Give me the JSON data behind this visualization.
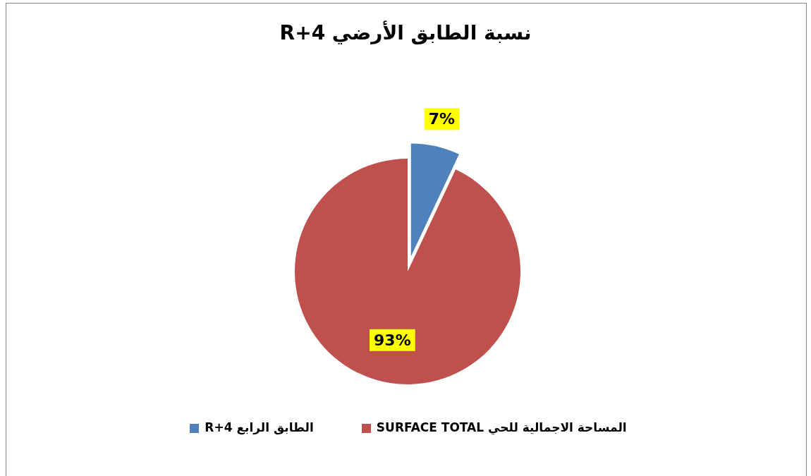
{
  "chart_data": {
    "type": "pie",
    "title": "نسبة الطابق الأرضي  R+4",
    "categories": [
      "الطابق الرابع  R+4",
      "المساحة الاجمالية للحي   SURFACE TOTAL"
    ],
    "values": [
      7,
      93
    ],
    "colors": [
      "#4f81bd",
      "#c0504d"
    ],
    "value_labels": [
      "7%",
      "93%"
    ],
    "legend": "bottom"
  }
}
